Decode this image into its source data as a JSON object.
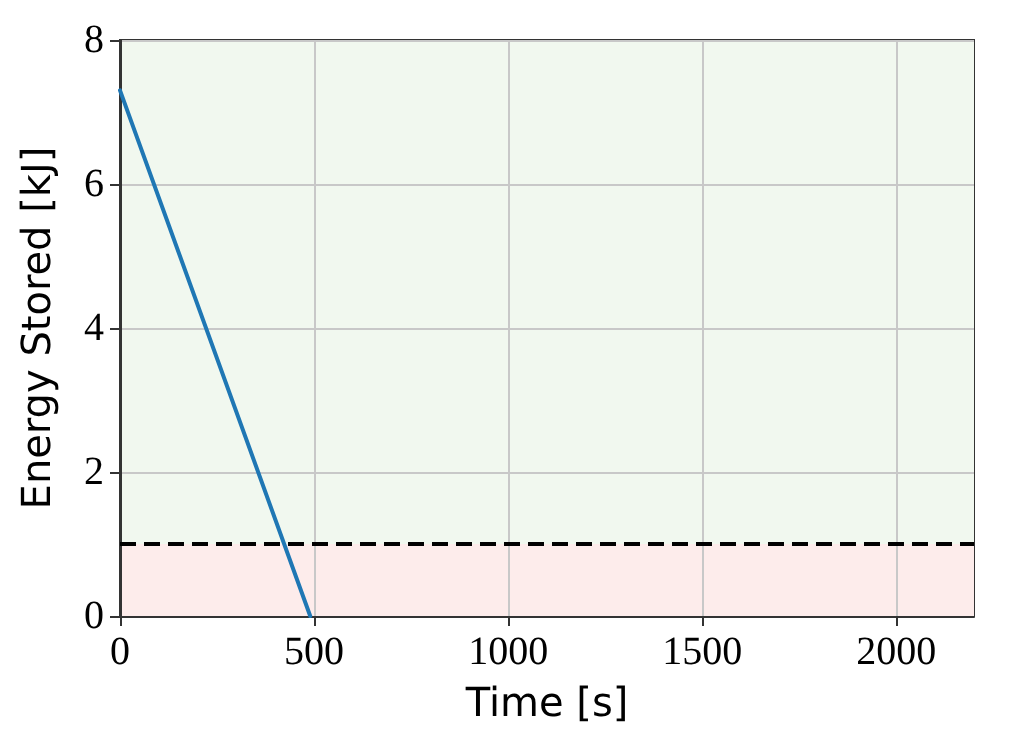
{
  "chart_data": {
    "type": "line",
    "xlabel": "Time [s]",
    "ylabel": "Energy Stored [kJ]",
    "x": [
      0,
      490
    ],
    "series": [
      {
        "color": "#1f77b4",
        "values": [
          7.3,
          0
        ]
      }
    ],
    "xlim": [
      0,
      2200
    ],
    "xticks": [
      0,
      500,
      1000,
      1500,
      2000
    ],
    "ylim": [
      0,
      8
    ],
    "yticks": [
      0,
      2,
      4,
      6,
      8
    ],
    "ref_lines": [
      {
        "axis": "y",
        "value": 1,
        "color": "#000000",
        "line_style": "dashed"
      }
    ],
    "bands": [
      {
        "axis": "y",
        "from": 1,
        "to": 8,
        "color": "#f1f8ef"
      },
      {
        "axis": "y",
        "from": 0,
        "to": 1,
        "color": "#fdeceb"
      }
    ],
    "grid": true,
    "marker": "none",
    "line_style": "solid"
  }
}
